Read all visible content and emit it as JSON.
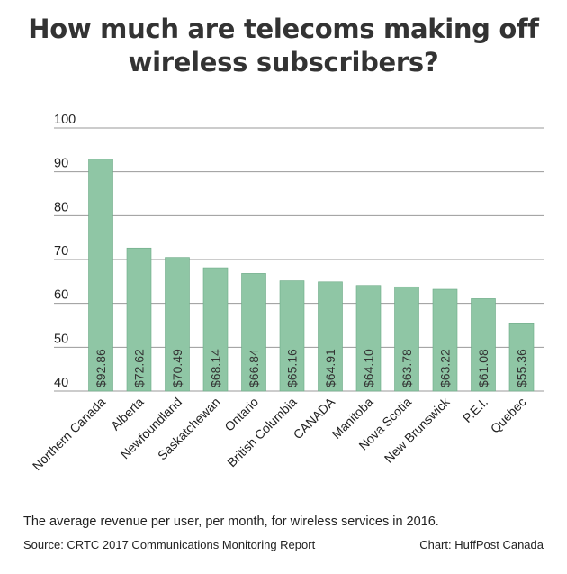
{
  "chart_data": {
    "type": "bar",
    "title": "How much are telecoms making off wireless subscribers?",
    "title_lines": [
      "How much are telecoms making off",
      "wireless subscribers?"
    ],
    "categories": [
      "Northern Canada",
      "Alberta",
      "Newfoundland",
      "Saskatchewan",
      "Ontario",
      "British Columbia",
      "CANADA",
      "Manitoba",
      "Nova Scotia",
      "New Brunswick",
      "P.E.I.",
      "Quebec"
    ],
    "values": [
      92.86,
      72.62,
      70.49,
      68.14,
      66.84,
      65.16,
      64.91,
      64.1,
      63.78,
      63.22,
      61.08,
      55.36
    ],
    "data_labels": [
      "$92.86",
      "$72.62",
      "$70.49",
      "$68.14",
      "$66.84",
      "$65.16",
      "$64.91",
      "$64.10",
      "$63.78",
      "$63.22",
      "$61.08",
      "$55.36"
    ],
    "ylim": [
      40,
      100
    ],
    "yticks": [
      "40",
      "50",
      "60",
      "70",
      "80",
      "90",
      "100"
    ],
    "xlabel": "",
    "ylabel": "",
    "grid": true,
    "bar_color": "#8fc6a5",
    "bar_edge_color": "#6daa86",
    "grid_color": "#9a9a9a"
  },
  "footer": {
    "caption": "The average revenue per user, per month, for wireless services in 2016.",
    "source": "Source: CRTC 2017 Communications Monitoring Report",
    "credit": "Chart: HuffPost Canada"
  }
}
